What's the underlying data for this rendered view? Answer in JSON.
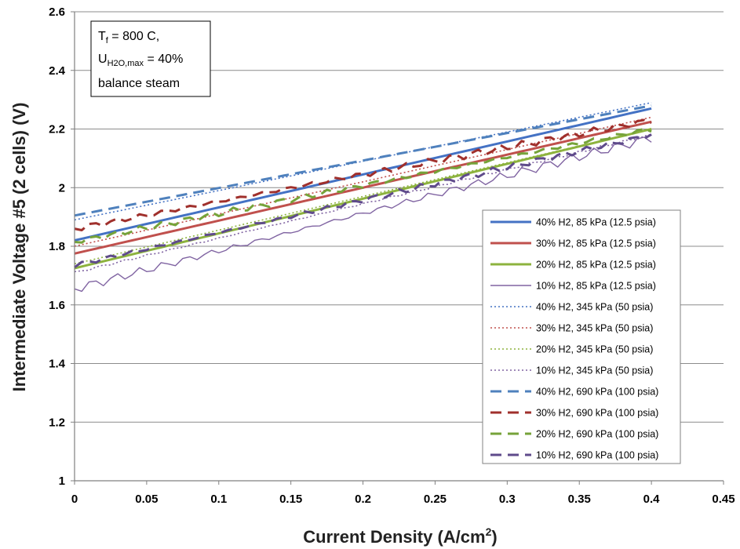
{
  "chart_data": {
    "type": "line",
    "xlabel": "Current Density (A/cm",
    "xlabel_sup": "2",
    "xlabel_tail": ")",
    "ylabel": "Intermediate Voltage #5 (2 cells) (V)",
    "xlim": [
      0,
      0.45
    ],
    "ylim": [
      1,
      2.6
    ],
    "x_ticks": [
      "0",
      "0.05",
      "0.1",
      "0.15",
      "0.2",
      "0.25",
      "0.3",
      "0.35",
      "0.4",
      "0.45"
    ],
    "y_ticks": [
      "1",
      "1.2",
      "1.4",
      "1.6",
      "1.8",
      "2",
      "2.2",
      "2.4",
      "2.6"
    ],
    "grid": "horizontal",
    "legend_position": "right",
    "annotation": {
      "line1": "T",
      "line1_sub": "f",
      "line1_rest": " = 800 C,",
      "line2": "U",
      "line2_sub": "H2O,max",
      "line2_rest": " = 40%",
      "line3": "balance steam"
    },
    "series": [
      {
        "name": "40% H2, 85 kPa (12.5 psia)",
        "color": "#4472C4",
        "dash": "solid",
        "width": 3,
        "noise": 0,
        "x": [
          0,
          0.4
        ],
        "y": [
          1.82,
          2.27
        ]
      },
      {
        "name": "30% H2, 85 kPa (12.5 psia)",
        "color": "#C0504D",
        "dash": "solid",
        "width": 3,
        "noise": 0,
        "x": [
          0,
          0.4
        ],
        "y": [
          1.775,
          2.225
        ]
      },
      {
        "name": "20% H2, 85 kPa (12.5 psia)",
        "color": "#8DB33E",
        "dash": "solid",
        "width": 3,
        "noise": 0,
        "x": [
          0,
          0.4
        ],
        "y": [
          1.725,
          2.2
        ]
      },
      {
        "name": "10% H2, 85 kPa (12.5 psia)",
        "color": "#8064A2",
        "dash": "solid",
        "width": 1.4,
        "noise": 0.015,
        "x": [
          0,
          0.4
        ],
        "y": [
          1.655,
          2.17
        ]
      },
      {
        "name": "40% H2, 345 kPa (50 psia)",
        "color": "#4472C4",
        "dash": "dot",
        "width": 1.6,
        "noise": 0,
        "x": [
          0,
          0.4
        ],
        "y": [
          1.89,
          2.29
        ]
      },
      {
        "name": "30% H2, 345 kPa (50 psia)",
        "color": "#C0504D",
        "dash": "dot",
        "width": 1.6,
        "noise": 0,
        "x": [
          0,
          0.4
        ],
        "y": [
          1.8,
          2.24
        ]
      },
      {
        "name": "20% H2, 345 kPa (50 psia)",
        "color": "#8DB33E",
        "dash": "dot",
        "width": 1.6,
        "noise": 0,
        "x": [
          0,
          0.4
        ],
        "y": [
          1.74,
          2.2
        ]
      },
      {
        "name": "10% H2, 345 kPa (50 psia)",
        "color": "#8064A2",
        "dash": "dot",
        "width": 1.6,
        "noise": 0.004,
        "x": [
          0,
          0.4
        ],
        "y": [
          1.71,
          2.18
        ]
      },
      {
        "name": "40% H2, 690 kPa (100 psia)",
        "color": "#4F81BD",
        "dash": "dash",
        "width": 3,
        "noise": 0,
        "x": [
          0,
          0.4
        ],
        "y": [
          1.905,
          2.28
        ]
      },
      {
        "name": "30% H2, 690 kPa (100 psia)",
        "color": "#A0302C",
        "dash": "dash",
        "width": 3,
        "noise": 0.012,
        "x": [
          0,
          0.4
        ],
        "y": [
          1.86,
          2.23
        ]
      },
      {
        "name": "20% H2, 690 kPa (100 psia)",
        "color": "#76A33A",
        "dash": "dash",
        "width": 3,
        "noise": 0.01,
        "x": [
          0,
          0.4
        ],
        "y": [
          1.815,
          2.2
        ]
      },
      {
        "name": "10% H2, 690 kPa (100 psia)",
        "color": "#5F4B8B",
        "dash": "dash",
        "width": 3,
        "noise": 0.01,
        "x": [
          0,
          0.4
        ],
        "y": [
          1.735,
          2.18
        ]
      }
    ]
  }
}
